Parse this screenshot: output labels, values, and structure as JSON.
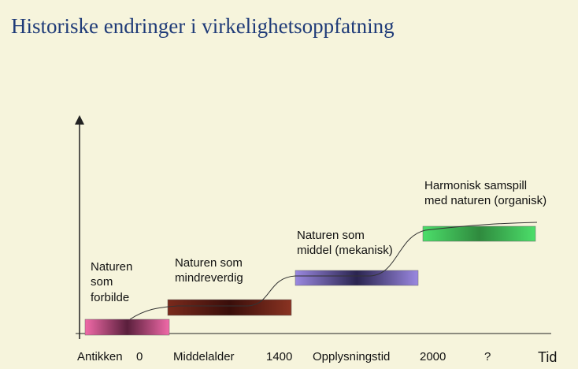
{
  "title": "Historiske endringer i virkelighetsoppfatning",
  "stages": [
    {
      "lines": [
        "Naturen",
        "som",
        "forbilde"
      ]
    },
    {
      "lines": [
        "Naturen som",
        "mindreverdig"
      ]
    },
    {
      "lines": [
        "Naturen som",
        "middel (mekanisk)"
      ]
    },
    {
      "lines": [
        "Harmonisk samspill",
        "med naturen (organisk)"
      ]
    }
  ],
  "axis_labels": [
    "Antikken",
    "0",
    "Middelalder",
    "1400",
    "Opplysningstid",
    "2000",
    "?",
    "Tid"
  ]
}
